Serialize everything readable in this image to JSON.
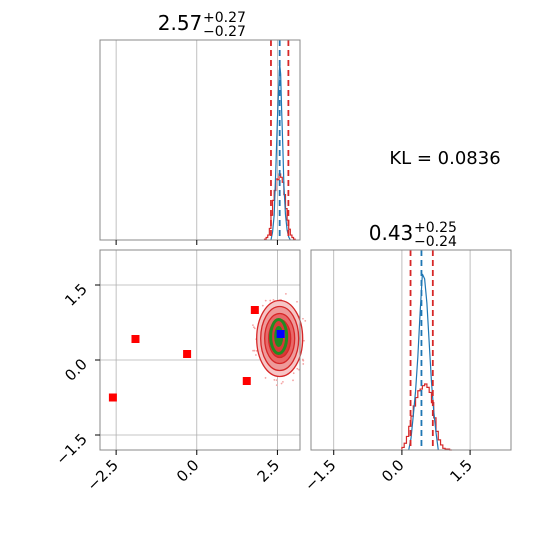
{
  "colors": {
    "hist_line": "#d62728",
    "kde_line": "#1f77b4",
    "ci_line": "#d62728",
    "median_line": "#1f77b4",
    "contour_outer": "#d62728",
    "contour_inner": "#228b22",
    "truth_marker": "#0000ff",
    "points": "#ff0000",
    "grid": "#b0b0b0",
    "frame": "#888888"
  },
  "kl_text": "KL = 0.0836",
  "chart_data": [
    {
      "type": "histogram",
      "panel": "top-left",
      "title_value": "2.57",
      "title_plus": "+0.27",
      "title_minus": "−0.27",
      "xlim": [
        -3.0,
        3.2
      ],
      "median": 2.57,
      "ci": [
        2.3,
        2.84
      ],
      "bins": [
        2.1,
        2.15,
        2.2,
        2.25,
        2.3,
        2.35,
        2.4,
        2.45,
        2.5,
        2.55,
        2.6,
        2.65,
        2.7,
        2.75,
        2.8,
        2.85,
        2.9,
        2.95,
        3.0,
        3.05
      ],
      "counts": [
        1,
        3,
        6,
        14,
        30,
        48,
        60,
        74,
        73,
        80,
        76,
        70,
        55,
        38,
        24,
        13,
        6,
        3,
        1
      ],
      "kde_x": [
        2.3,
        2.35,
        2.4,
        2.45,
        2.5,
        2.55,
        2.57,
        2.6,
        2.63,
        2.67,
        2.7,
        2.75,
        2.8,
        2.85,
        2.9
      ],
      "kde_y": [
        0,
        8,
        25,
        70,
        120,
        160,
        175,
        165,
        130,
        90,
        55,
        25,
        10,
        3,
        0
      ],
      "x_ticks": [
        -2.5,
        0.0,
        2.5
      ],
      "grid": true
    },
    {
      "type": "histogram",
      "panel": "bottom-right",
      "title_value": "0.43",
      "title_plus": "+0.25",
      "title_minus": "−0.24",
      "xlim": [
        -2.0,
        2.4
      ],
      "median": 0.43,
      "ci": [
        0.19,
        0.68
      ],
      "bins": [
        0.0,
        0.05,
        0.1,
        0.15,
        0.2,
        0.25,
        0.3,
        0.35,
        0.4,
        0.45,
        0.5,
        0.55,
        0.6,
        0.65,
        0.7,
        0.75,
        0.8,
        0.85,
        0.9,
        0.95,
        1.0,
        1.05,
        1.1
      ],
      "counts": [
        3,
        8,
        16,
        28,
        40,
        52,
        62,
        70,
        72,
        76,
        78,
        74,
        68,
        56,
        38,
        22,
        12,
        6,
        2,
        1,
        1,
        0
      ],
      "kde_x": [
        0.15,
        0.2,
        0.25,
        0.3,
        0.35,
        0.4,
        0.45,
        0.5,
        0.55,
        0.6,
        0.65,
        0.7,
        0.75,
        0.8
      ],
      "kde_y": [
        0,
        12,
        35,
        60,
        95,
        140,
        180,
        175,
        150,
        110,
        70,
        40,
        18,
        0
      ],
      "x_ticks": [
        -1.5,
        0.0,
        1.5
      ],
      "x_tick_labels": [
        "−1.5",
        "0.0",
        "1.5"
      ],
      "grid": true
    },
    {
      "type": "scatter",
      "panel": "bottom-left",
      "xlim": [
        -3.0,
        3.2
      ],
      "ylim": [
        -1.8,
        2.2
      ],
      "x_ticks": [
        -2.5,
        0.0,
        2.5
      ],
      "x_tick_labels": [
        "−2.5",
        "0.0",
        "2.5"
      ],
      "y_ticks": [
        -1.5,
        0.0,
        1.5
      ],
      "y_tick_labels": [
        "−1.5",
        "0.0",
        "1.5"
      ],
      "points": [
        {
          "x": -2.6,
          "y": -0.75
        },
        {
          "x": -1.9,
          "y": 0.42
        },
        {
          "x": -0.3,
          "y": 0.12
        },
        {
          "x": 1.8,
          "y": 1.0
        },
        {
          "x": 1.55,
          "y": -0.42
        }
      ],
      "truth": {
        "x": 2.6,
        "y": 0.52
      },
      "contour_center": {
        "x": 2.57,
        "y": 0.43
      },
      "grid": true
    }
  ]
}
